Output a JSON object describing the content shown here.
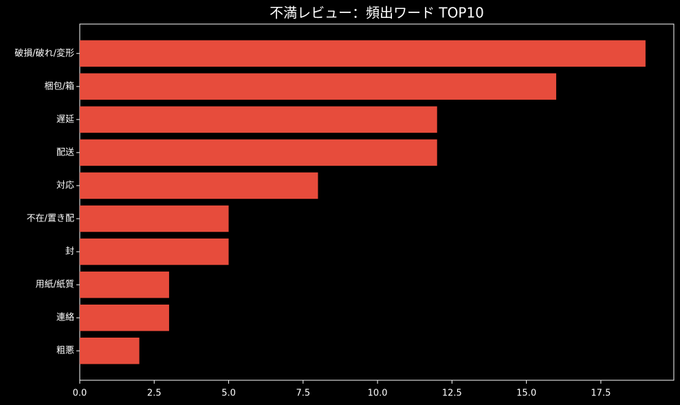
{
  "chart_data": {
    "type": "barh",
    "title": "不満レビュー：頻出ワード TOP10",
    "categories": [
      "破損/破れ/変形",
      "梱包/箱",
      "遅延",
      "配送",
      "対応",
      "不在/置き配",
      "封",
      "用紙/紙質",
      "連絡",
      "粗悪"
    ],
    "values": [
      19,
      16,
      12,
      12,
      8,
      5,
      5,
      3,
      3,
      2
    ],
    "color": "#e74c3c",
    "xlim": [
      0,
      19.95
    ],
    "xticks": [
      {
        "value": 0,
        "label": "0.0"
      },
      {
        "value": 2.5,
        "label": "2.5"
      },
      {
        "value": 5,
        "label": "5.0"
      },
      {
        "value": 7.5,
        "label": "7.5"
      },
      {
        "value": 10,
        "label": "10.0"
      },
      {
        "value": 12.5,
        "label": "12.5"
      },
      {
        "value": 15,
        "label": "15.0"
      },
      {
        "value": 17.5,
        "label": "17.5"
      }
    ],
    "grid": false
  }
}
